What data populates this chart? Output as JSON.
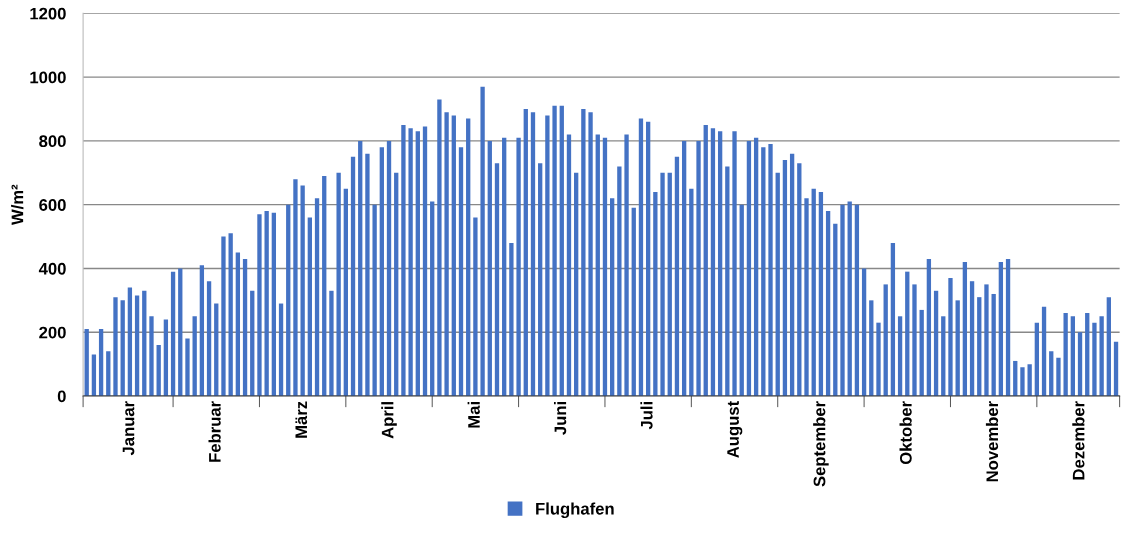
{
  "chart_data": {
    "type": "bar",
    "ylabel": "W/m²",
    "categories": [
      null,
      null,
      null,
      null,
      null,
      null,
      "Januar",
      null,
      null,
      null,
      null,
      null,
      null,
      null,
      null,
      null,
      null,
      null,
      "Februar",
      null,
      null,
      null,
      null,
      null,
      null,
      null,
      null,
      null,
      null,
      null,
      "März",
      null,
      null,
      null,
      null,
      null,
      null,
      null,
      null,
      null,
      null,
      null,
      "April",
      null,
      null,
      null,
      null,
      null,
      null,
      null,
      null,
      null,
      null,
      null,
      "Mai",
      null,
      null,
      null,
      null,
      null,
      null,
      null,
      null,
      null,
      null,
      null,
      "Juni",
      null,
      null,
      null,
      null,
      null,
      null,
      null,
      null,
      null,
      null,
      null,
      "Juli",
      null,
      null,
      null,
      null,
      null,
      null,
      null,
      null,
      null,
      null,
      null,
      "August",
      null,
      null,
      null,
      null,
      null,
      null,
      null,
      null,
      null,
      null,
      null,
      "September",
      null,
      null,
      null,
      null,
      null,
      null,
      null,
      null,
      null,
      null,
      null,
      "Oktober",
      null,
      null,
      null,
      null,
      null,
      null,
      null,
      null,
      null,
      null,
      null,
      "November",
      null,
      null,
      null,
      null,
      null,
      null,
      null,
      null,
      null,
      null,
      null,
      "Dezember",
      null,
      null,
      null,
      null,
      null
    ],
    "series": [
      {
        "name": "Flughafen",
        "color": "#4472c4",
        "values": [
          210,
          130,
          210,
          140,
          310,
          300,
          340,
          315,
          330,
          250,
          160,
          240,
          390,
          400,
          180,
          250,
          410,
          360,
          290,
          500,
          510,
          450,
          430,
          330,
          570,
          580,
          575,
          290,
          600,
          680,
          660,
          560,
          620,
          690,
          330,
          700,
          650,
          750,
          800,
          760,
          600,
          780,
          800,
          700,
          850,
          840,
          830,
          845,
          610,
          930,
          890,
          880,
          780,
          870,
          560,
          970,
          800,
          730,
          810,
          480,
          810,
          900,
          890,
          730,
          880,
          910,
          910,
          820,
          700,
          900,
          890,
          820,
          810,
          620,
          720,
          820,
          590,
          870,
          860,
          640,
          700,
          700,
          750,
          800,
          650,
          800,
          850,
          840,
          830,
          720,
          830,
          600,
          800,
          810,
          780,
          790,
          700,
          740,
          760,
          730,
          620,
          650,
          640,
          580,
          540,
          600,
          610,
          600,
          400,
          300,
          230,
          350,
          480,
          250,
          390,
          350,
          270,
          430,
          330,
          250,
          370,
          300,
          420,
          360,
          310,
          350,
          320,
          420,
          430,
          110,
          90,
          100,
          230,
          280,
          140,
          120,
          260,
          250,
          200,
          260,
          230,
          250,
          310,
          170
        ]
      }
    ],
    "ylim": [
      0,
      1200
    ],
    "yticks": [
      0,
      200,
      400,
      600,
      800,
      1000,
      1200
    ],
    "grid": "y",
    "legend": "bottom"
  }
}
